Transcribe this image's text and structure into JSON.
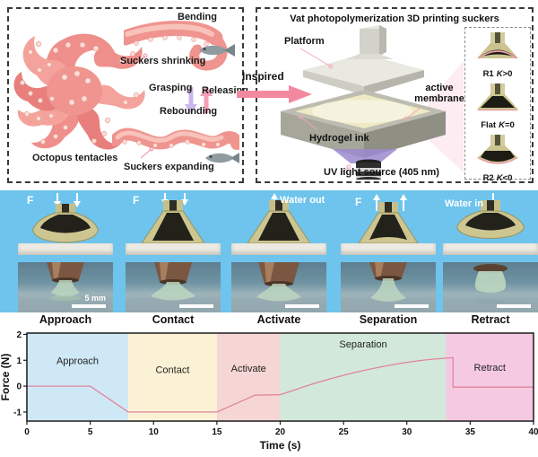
{
  "bio_panel": {
    "labels": {
      "bending": "Bending",
      "suckers_shrinking": "Suckers shrinking",
      "grasping": "Grasping",
      "releasing": "Releasing",
      "rebounding": "Rebounding",
      "octopus_tentacles": "Octopus tentacles",
      "suckers_expanding": "Suckers expanding"
    }
  },
  "inspired_label": "Inspired",
  "printing_panel": {
    "title": "Vat photopolymerization 3D printing suckers",
    "labels": {
      "platform": "Platform",
      "active_membrane": "active membrane",
      "hydrogel_ink": "Hydrogel ink",
      "uv_source": "UV light source (405 nm)"
    },
    "inset": [
      {
        "name": "R1",
        "k": "K",
        "expr": ">0"
      },
      {
        "name": "Flat",
        "k": "K",
        "expr": "=0"
      },
      {
        "name": "R2",
        "k": "K",
        "expr": "<0"
      }
    ]
  },
  "sequence_panels": [
    {
      "annotation": "F",
      "stage": "Approach",
      "scale_label": "5 mm"
    },
    {
      "annotation": "F",
      "stage": "Contact"
    },
    {
      "annotation": "Water out",
      "stage": "Activate"
    },
    {
      "annotation": "F",
      "stage": "Separation"
    },
    {
      "annotation": "Water in",
      "stage": "Retract"
    }
  ],
  "colors": {
    "strip_blue": "#6ec4ec",
    "accent_pink": "#f2899f",
    "sucker_khaki": "#cdc691"
  },
  "chart_data": {
    "type": "line",
    "title": "",
    "xlabel": "Time (s)",
    "ylabel": "Force (N)",
    "xlim": [
      0,
      40
    ],
    "ylim": [
      -1.35,
      2.05
    ],
    "xticks": [
      0,
      5,
      10,
      15,
      20,
      25,
      30,
      35,
      40
    ],
    "yticks": [
      -1,
      0,
      1,
      2
    ],
    "grid": false,
    "legend": false,
    "line_color": "#e2849b",
    "regions": [
      {
        "label": "Approach",
        "start": 0,
        "end": 8,
        "color": "#cfe8f5",
        "label_y": 0.85
      },
      {
        "label": "Contact",
        "start": 8,
        "end": 15,
        "color": "#fbf2d5",
        "label_y": 0.5
      },
      {
        "label": "Activate",
        "start": 15,
        "end": 20,
        "color": "#f6d6d4",
        "label_y": 0.55
      },
      {
        "label": "Separation",
        "start": 20,
        "end": 33.1,
        "color": "#d2e8da",
        "label_y": 1.5
      },
      {
        "label": "Retract",
        "start": 33.1,
        "end": 40,
        "color": "#f6c9e2",
        "label_y": 0.6
      }
    ],
    "series": [
      {
        "name": "Force",
        "points": [
          [
            0,
            0
          ],
          [
            5,
            0
          ],
          [
            8,
            -1
          ],
          [
            15,
            -1
          ],
          [
            18,
            -0.35
          ],
          [
            20,
            -0.33
          ],
          [
            21,
            -0.17
          ],
          [
            22,
            0
          ],
          [
            23,
            0.15
          ],
          [
            24,
            0.29
          ],
          [
            25,
            0.42
          ],
          [
            26,
            0.54
          ],
          [
            27,
            0.65
          ],
          [
            28,
            0.75
          ],
          [
            29,
            0.84
          ],
          [
            30,
            0.92
          ],
          [
            31,
            0.99
          ],
          [
            32,
            1.04
          ],
          [
            33,
            1.08
          ],
          [
            33.65,
            1.1
          ],
          [
            33.65,
            -0.04
          ],
          [
            40,
            -0.04
          ]
        ]
      }
    ]
  }
}
